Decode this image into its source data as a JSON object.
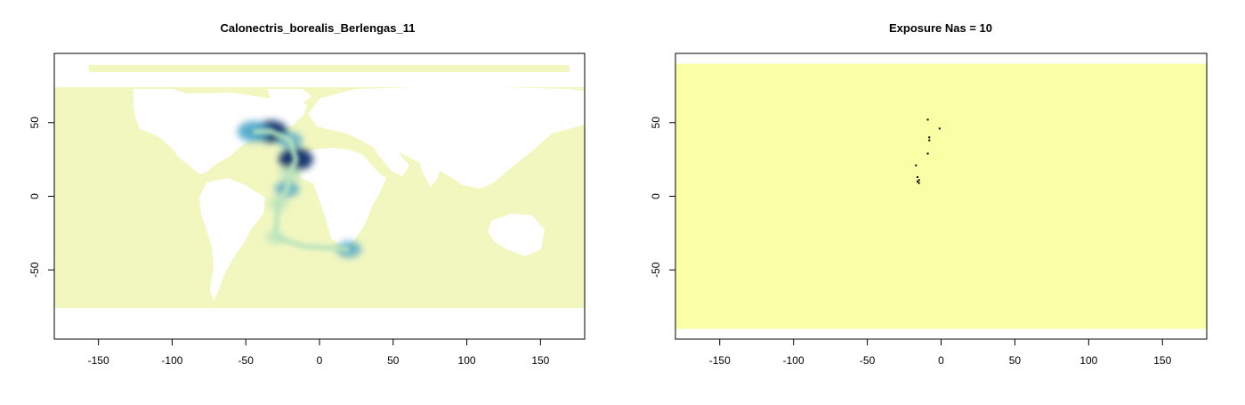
{
  "chart_data": [
    {
      "type": "heatmap",
      "title": "Calonectris_borealis_Berlengas_11",
      "xlabel": "",
      "ylabel": "",
      "xlim": [
        -180,
        180
      ],
      "ylim": [
        -97,
        97
      ],
      "xticks": [
        -150,
        -100,
        -50,
        0,
        50,
        100,
        150
      ],
      "yticks": [
        -50,
        0,
        50
      ],
      "grid": false,
      "colors": {
        "background": "#f2f7c0",
        "low": "#b9e3bd",
        "mid": "#45a2c8",
        "high": "#08306b",
        "land": "#ffffff"
      },
      "density_hotspots": [
        {
          "lon": -33,
          "lat": 44,
          "intensity": 0.95
        },
        {
          "lon": -45,
          "lat": 44,
          "intensity": 0.85
        },
        {
          "lon": -16,
          "lat": 25,
          "intensity": 1.0
        },
        {
          "lon": -20,
          "lat": 38,
          "intensity": 0.55
        },
        {
          "lon": -22,
          "lat": 5,
          "intensity": 0.55
        },
        {
          "lon": -20,
          "lat": 15,
          "intensity": 0.45
        },
        {
          "lon": -28,
          "lat": -5,
          "intensity": 0.4
        },
        {
          "lon": -30,
          "lat": -28,
          "intensity": 0.35
        },
        {
          "lon": 20,
          "lat": -36,
          "intensity": 0.55
        }
      ]
    },
    {
      "type": "heatmap",
      "title": "Exposure Nas = 10",
      "xlabel": "",
      "ylabel": "",
      "xlim": [
        -180,
        180
      ],
      "ylim": [
        -97,
        97
      ],
      "xticks": [
        -150,
        -100,
        -50,
        0,
        50,
        100,
        150
      ],
      "yticks": [
        -50,
        0,
        50
      ],
      "grid": false,
      "fill_extent": {
        "lon": [
          -180,
          180
        ],
        "lat": [
          -90,
          90
        ]
      },
      "colors": {
        "fill": "#fafea4",
        "na": "#000000"
      },
      "na_cells": [
        {
          "lon": -9,
          "lat": 52
        },
        {
          "lon": -1,
          "lat": 46
        },
        {
          "lon": -8,
          "lat": 40
        },
        {
          "lon": -8,
          "lat": 38
        },
        {
          "lon": -9,
          "lat": 29
        },
        {
          "lon": -17,
          "lat": 21
        },
        {
          "lon": -16,
          "lat": 13
        },
        {
          "lon": -15,
          "lat": 11
        },
        {
          "lon": -16,
          "lat": 10
        },
        {
          "lon": -15,
          "lat": 9
        }
      ]
    }
  ]
}
